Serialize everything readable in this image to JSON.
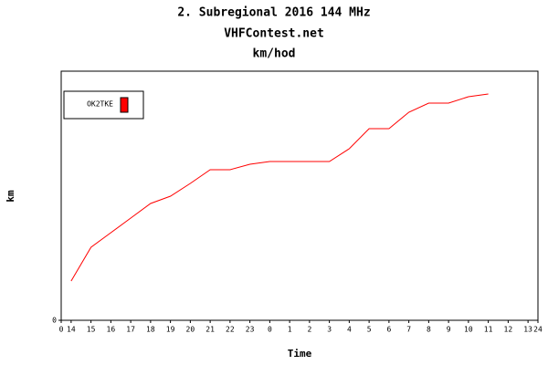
{
  "chart_data": {
    "type": "line",
    "title": "2. Subregional 2016 144 MHz",
    "subtitle": "VHFContest.net",
    "unit_title": "km/hod",
    "y_label": "km",
    "x_label": "Time",
    "categories": [
      "14",
      "15",
      "16",
      "17",
      "18",
      "19",
      "20",
      "21",
      "22",
      "23",
      "0",
      "1",
      "2",
      "3",
      "4",
      "5",
      "6",
      "7",
      "8",
      "9",
      "10",
      "11",
      "12",
      "13"
    ],
    "xlim": [
      0,
      24
    ],
    "xticks": [
      0,
      24
    ],
    "ylim": [
      0,
      273
    ],
    "yticks": [
      0
    ],
    "legend": "top-left",
    "series": [
      {
        "name": "OK2TKE",
        "color": "#ff0000",
        "values": [
          43,
          80,
          96,
          112,
          128,
          136,
          150,
          165,
          165,
          171,
          174,
          174,
          174,
          174,
          188,
          210,
          210,
          228,
          238,
          238,
          245,
          248,
          null,
          null
        ]
      }
    ]
  }
}
